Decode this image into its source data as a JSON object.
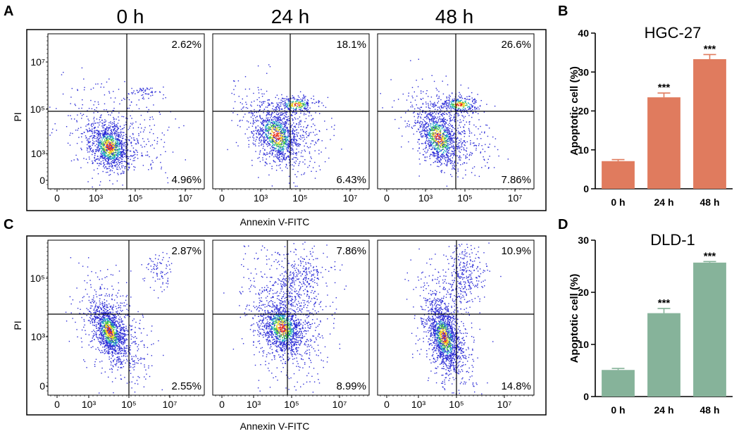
{
  "figure": {
    "panel_labels": {
      "A": "A",
      "B": "B",
      "C": "C",
      "D": "D"
    },
    "time_labels": [
      "0 h",
      "24 h",
      "48 h"
    ]
  },
  "flow_A": {
    "xlabel": "Annexin V-FITC",
    "ylabel": "PI",
    "x_ticks": [
      "0",
      "10³",
      "10⁵",
      "10⁷"
    ],
    "y_ticks": [
      "10⁷",
      "10⁵",
      "10³",
      "0"
    ],
    "plots": [
      {
        "time": "0 h",
        "upper_right": "2.62%",
        "lower_right": "4.96%"
      },
      {
        "time": "24 h",
        "upper_right": "18.1%",
        "lower_right": "6.43%"
      },
      {
        "time": "48 h",
        "upper_right": "26.6%",
        "lower_right": "7.86%"
      }
    ]
  },
  "flow_C": {
    "xlabel": "Annexin V-FITC",
    "ylabel": "PI",
    "x_ticks": [
      "0",
      "10³",
      "10⁵",
      "10⁷"
    ],
    "y_ticks": [
      "10⁵",
      "10³",
      "0"
    ],
    "plots": [
      {
        "time": "0 h",
        "upper_right": "2.87%",
        "lower_right": "2.55%"
      },
      {
        "time": "24 h",
        "upper_right": "7.86%",
        "lower_right": "8.99%"
      },
      {
        "time": "48 h",
        "upper_right": "10.9%",
        "lower_right": "14.8%"
      }
    ]
  },
  "chart_data": [
    {
      "type": "bar",
      "panel": "B",
      "title": "HGC-27",
      "xlabel": "",
      "ylabel": "Apoptotic cell (%)",
      "categories": [
        "0 h",
        "24 h",
        "48 h"
      ],
      "values": [
        7.1,
        23.5,
        33.3
      ],
      "errors": [
        0.4,
        1.1,
        1.2
      ],
      "significance": [
        "",
        "***",
        "***"
      ],
      "ylim": [
        0,
        40
      ],
      "yticks": [
        0,
        10,
        20,
        30,
        40
      ],
      "color": "#e07b5e"
    },
    {
      "type": "bar",
      "panel": "D",
      "title": "DLD-1",
      "xlabel": "",
      "ylabel": "Apoptotic cell (%)",
      "categories": [
        "0 h",
        "24 h",
        "48 h"
      ],
      "values": [
        5.1,
        16.0,
        25.7
      ],
      "errors": [
        0.3,
        0.9,
        0.2
      ],
      "significance": [
        "",
        "***",
        "***"
      ],
      "ylim": [
        0,
        30
      ],
      "yticks": [
        0,
        10,
        20,
        30
      ],
      "color": "#86b39a"
    }
  ]
}
